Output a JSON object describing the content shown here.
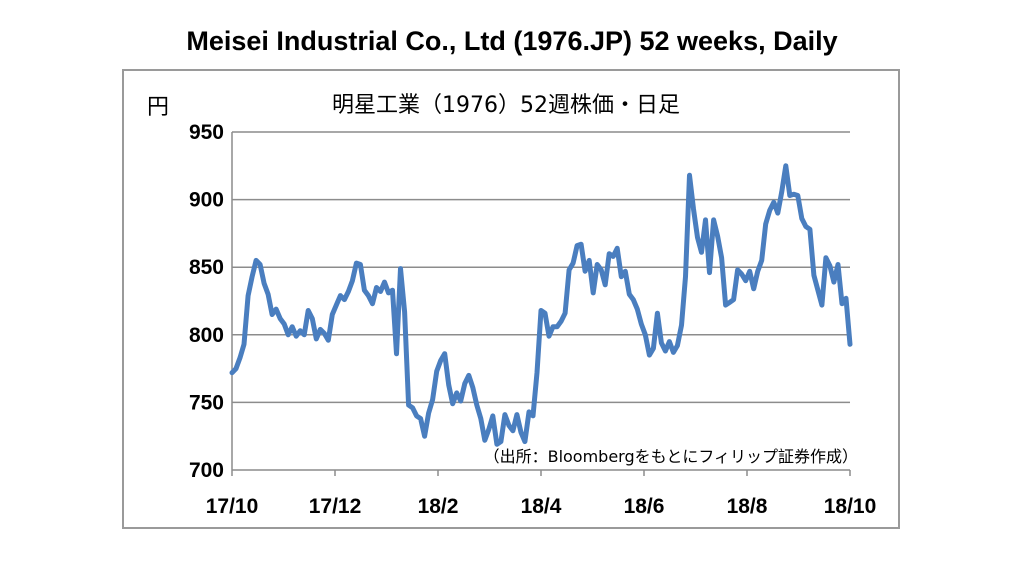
{
  "title": "Meisei Industrial Co., Ltd (1976.JP) 52 weeks, Daily",
  "chart_data": {
    "type": "line",
    "title": "明星工業（1976）52週株価・日足",
    "ylabel": "円",
    "xlabel": "",
    "source_note": "（出所：Bloombergをもとにフィリップ証券作成）",
    "ylim": [
      700,
      950
    ],
    "yticks": [
      "950",
      "900",
      "850",
      "800",
      "750",
      "700"
    ],
    "xticks": [
      "17/10",
      "17/12",
      "18/2",
      "18/4",
      "18/6",
      "18/8",
      "18/10"
    ],
    "grid": true,
    "line_color": "#4a7ebf",
    "series": [
      {
        "values": [
          772,
          775,
          783,
          793,
          829,
          843,
          855,
          852,
          838,
          830,
          815,
          819,
          812,
          808,
          800,
          806,
          799,
          803,
          800,
          818,
          812,
          797,
          804,
          801,
          796,
          815,
          822,
          829,
          826,
          832,
          840,
          853,
          852,
          833,
          829,
          823,
          835,
          832,
          839,
          831,
          833,
          786,
          849,
          817,
          748,
          746,
          740,
          738,
          725,
          742,
          752,
          773,
          781,
          786,
          763,
          749,
          757,
          751,
          764,
          770,
          761,
          748,
          738,
          722,
          730,
          740,
          719,
          721,
          741,
          733,
          729,
          741,
          728,
          721,
          743,
          740,
          772,
          818,
          816,
          799,
          806,
          806,
          810,
          816,
          848,
          853,
          866,
          867,
          847,
          855,
          831,
          852,
          848,
          837,
          860,
          858,
          864,
          843,
          847,
          830,
          826,
          819,
          808,
          800,
          785,
          790,
          816,
          794,
          788,
          795,
          787,
          792,
          807,
          843,
          918,
          893,
          872,
          861,
          885,
          846,
          885,
          873,
          857,
          822,
          824,
          826,
          848,
          845,
          840,
          847,
          834,
          847,
          855,
          882,
          892,
          898,
          890,
          906,
          925,
          903,
          904,
          903,
          886,
          880,
          878,
          844,
          833,
          822,
          857,
          851,
          839,
          852,
          823,
          827,
          793
        ]
      }
    ]
  }
}
